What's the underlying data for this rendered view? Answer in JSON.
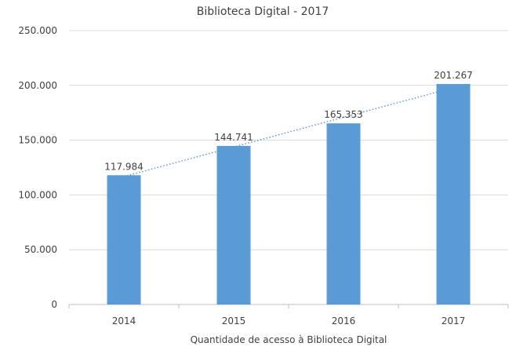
{
  "chart_data": {
    "type": "bar",
    "title": "Biblioteca Digital - 2017",
    "xlabel": "Quantidade de acesso à Biblioteca Digital",
    "ylabel": "",
    "categories": [
      "2014",
      "2015",
      "2016",
      "2017"
    ],
    "values": [
      117984,
      144741,
      165353,
      201267
    ],
    "data_labels": [
      "117.984",
      "144.741",
      "165.353",
      "201.267"
    ],
    "ylim": [
      0,
      250000
    ],
    "yticks": [
      0,
      50000,
      100000,
      150000,
      200000,
      250000
    ],
    "ytick_labels": [
      "0",
      "50.000",
      "100.000",
      "150.000",
      "200.000",
      "250.000"
    ],
    "grid": true,
    "trendline": {
      "type": "linear",
      "style": "dotted"
    },
    "colors": {
      "bar": "#5b9bd5",
      "trendline": "#5b9bd5",
      "grid": "#d9d9d9",
      "text": "#404040"
    }
  }
}
